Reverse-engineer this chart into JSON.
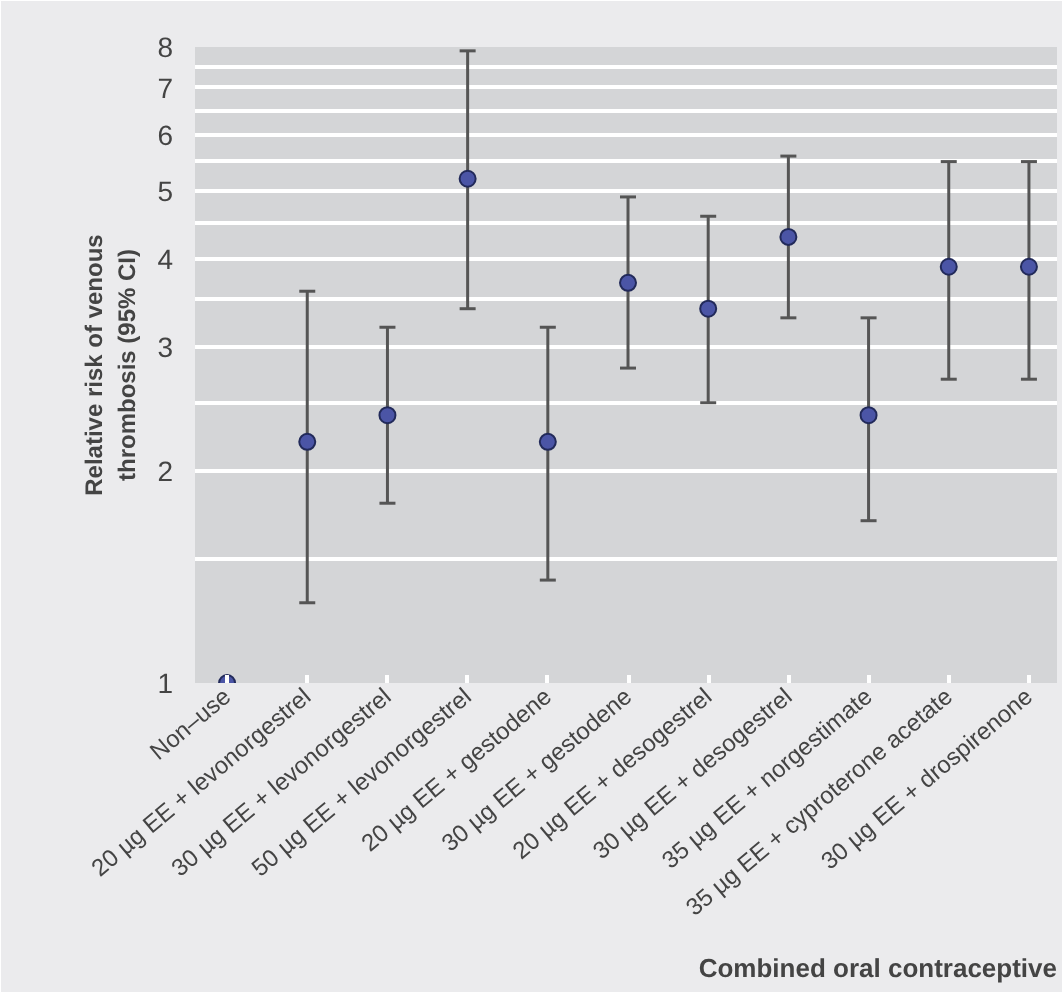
{
  "chart_data": {
    "type": "scatter",
    "xlabel": "Combined oral contraceptive",
    "ylabel": "Relative risk of venous\nthrombosis (95% CI)",
    "categories": [
      "Non–use",
      "20 µg EE + levonorgestrel",
      "30 µg EE + levonorgestrel",
      "50 µg EE + levonorgestrel",
      "20 µg EE + gestodene",
      "30 µg EE + gestodene",
      "20 µg EE + desogestrel",
      "30 µg EE + desogestrel",
      "35 µg EE + norgestimate",
      "35 µg EE + cyproterone acetate",
      "30 µg EE + drospirenone"
    ],
    "series": [
      {
        "color": "#4b55a6",
        "values": [
          1,
          2.2,
          2.4,
          5.2,
          2.2,
          3.7,
          3.4,
          4.3,
          2.4,
          3.9,
          3.9
        ],
        "errors": [
          null,
          [
            1.3,
            3.6
          ],
          [
            1.8,
            3.2
          ],
          [
            3.4,
            7.9
          ],
          [
            1.4,
            3.2
          ],
          [
            2.8,
            4.9
          ],
          [
            2.5,
            4.6
          ],
          [
            3.3,
            5.6
          ],
          [
            1.7,
            3.3
          ],
          [
            2.7,
            5.5
          ],
          [
            2.7,
            5.5
          ]
        ]
      }
    ],
    "log": "y",
    "ylim": [
      1,
      8
    ],
    "yticks": [
      1,
      {
        "value": 1.5,
        "label": null
      },
      2,
      {
        "value": 2.5,
        "label": null
      },
      3,
      {
        "value": 3.5,
        "label": null
      },
      4,
      {
        "value": 4.5,
        "label": null
      },
      5,
      {
        "value": 5.5,
        "label": null
      },
      6,
      {
        "value": 6.5,
        "label": null
      },
      7,
      {
        "value": 7.5,
        "label": null
      },
      8
    ],
    "grid": "y",
    "marker": "circle"
  }
}
